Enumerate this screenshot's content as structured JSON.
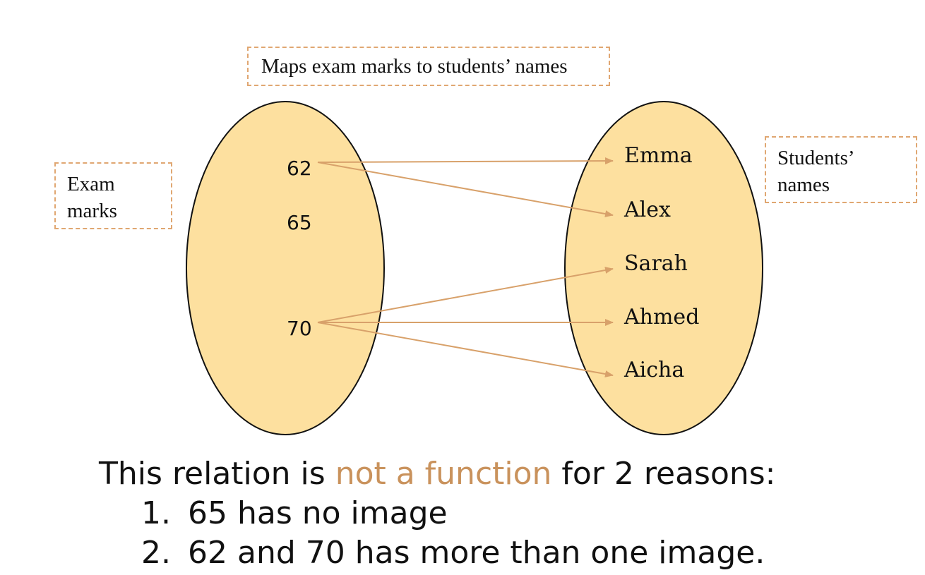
{
  "boxes": {
    "top": "Maps exam marks to students’ names",
    "left_line1": "Exam",
    "left_line2": "marks",
    "right_line1": "Students’",
    "right_line2": "names"
  },
  "domain": [
    "62",
    "65",
    "70"
  ],
  "codomain": [
    "Emma",
    "Alex",
    "Sarah",
    "Ahmed",
    "Aicha"
  ],
  "mappings": [
    {
      "from": "62",
      "to": "Emma"
    },
    {
      "from": "62",
      "to": "Alex"
    },
    {
      "from": "70",
      "to": "Sarah"
    },
    {
      "from": "70",
      "to": "Ahmed"
    },
    {
      "from": "70",
      "to": "Aicha"
    }
  ],
  "caption": {
    "prefix": "This relation is ",
    "highlight": "not a function",
    "suffix": " for 2 reasons:"
  },
  "reasons": [
    {
      "num": "1.",
      "text": "65 has no image"
    },
    {
      "num": "2.",
      "text": "62 and 70 has more than one image."
    }
  ],
  "colors": {
    "ellipse_fill": "#fde09f",
    "arrow": "#d8a16a",
    "highlight": "#c9925c",
    "box_border": "#e0a772"
  }
}
